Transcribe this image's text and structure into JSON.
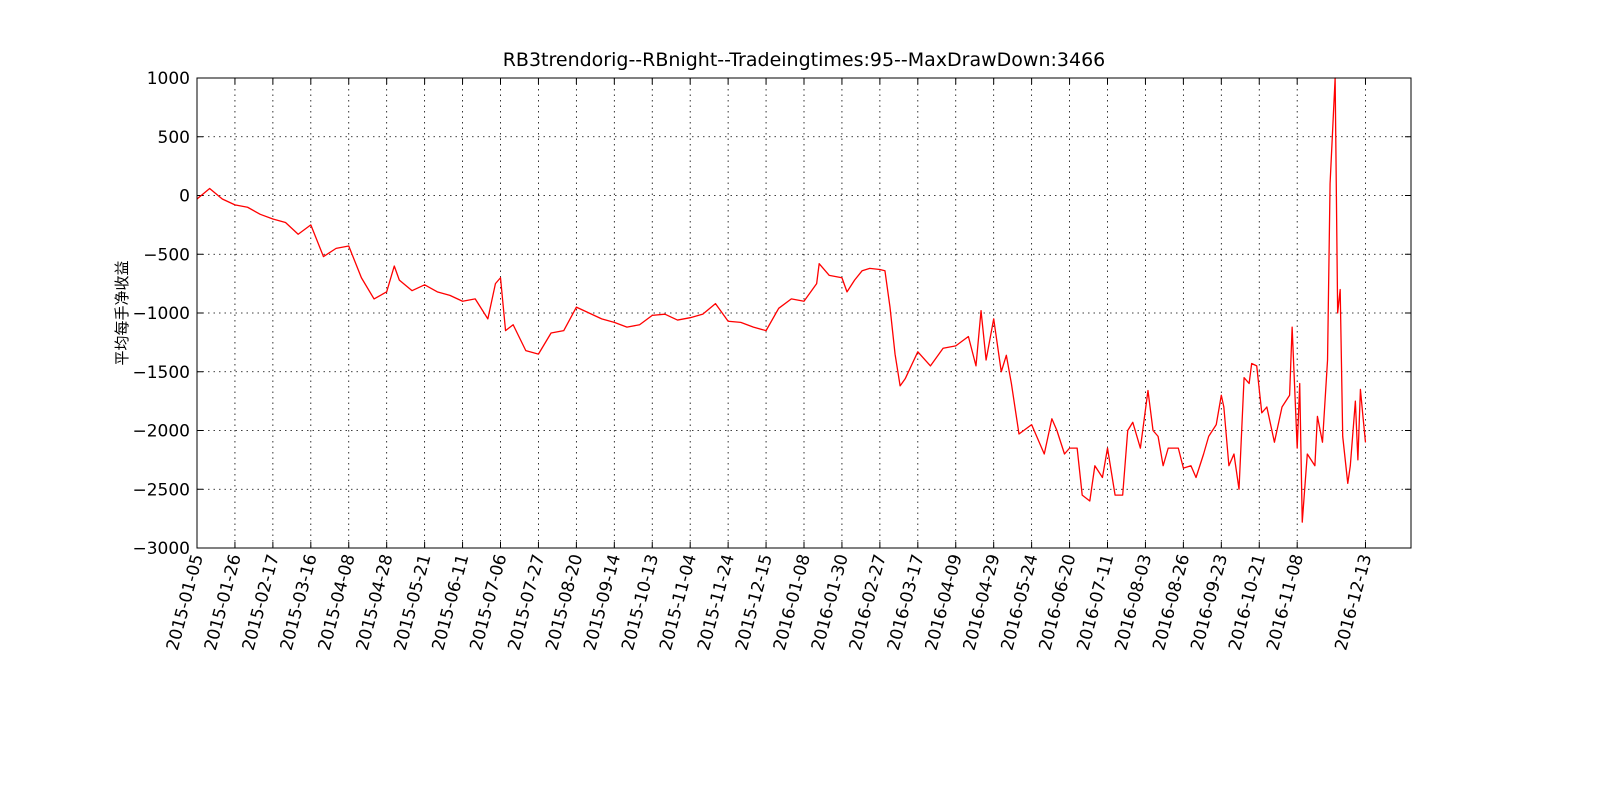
{
  "chart_data": {
    "type": "line",
    "title": "RB3trendorig--RBnight--Tradeingtimes:95--MaxDrawDown:3466",
    "y_label": "平均每手净收益",
    "grid": true,
    "xlim": [
      0,
      480
    ],
    "ylim": [
      -3000,
      1000
    ],
    "yticks": [
      {
        "value": -3000,
        "label": "−3000"
      },
      {
        "value": -2500,
        "label": "−2500"
      },
      {
        "value": -2000,
        "label": "−2000"
      },
      {
        "value": -1500,
        "label": "−1500"
      },
      {
        "value": -1000,
        "label": "−1000"
      },
      {
        "value": -500,
        "label": "−500"
      },
      0,
      500,
      1000
    ],
    "xticks": [
      {
        "value": 0,
        "label": "2015-01-05"
      },
      {
        "value": 15,
        "label": "2015-01-26"
      },
      {
        "value": 30,
        "label": "2015-02-17"
      },
      {
        "value": 45,
        "label": "2015-03-16"
      },
      {
        "value": 60,
        "label": "2015-04-08"
      },
      {
        "value": 75,
        "label": "2015-04-28"
      },
      {
        "value": 90,
        "label": "2015-05-21"
      },
      {
        "value": 105,
        "label": "2015-06-11"
      },
      {
        "value": 120,
        "label": "2015-07-06"
      },
      {
        "value": 135,
        "label": "2015-07-27"
      },
      {
        "value": 150,
        "label": "2015-08-20"
      },
      {
        "value": 165,
        "label": "2015-09-14"
      },
      {
        "value": 180,
        "label": "2015-10-13"
      },
      {
        "value": 195,
        "label": "2015-11-04"
      },
      {
        "value": 210,
        "label": "2015-11-24"
      },
      {
        "value": 225,
        "label": "2015-12-15"
      },
      {
        "value": 240,
        "label": "2016-01-08"
      },
      {
        "value": 255,
        "label": "2016-01-30"
      },
      {
        "value": 270,
        "label": "2016-02-27"
      },
      {
        "value": 285,
        "label": "2016-03-17"
      },
      {
        "value": 300,
        "label": "2016-04-09"
      },
      {
        "value": 315,
        "label": "2016-04-29"
      },
      {
        "value": 330,
        "label": "2016-05-24"
      },
      {
        "value": 345,
        "label": "2016-06-20"
      },
      {
        "value": 360,
        "label": "2016-07-11"
      },
      {
        "value": 375,
        "label": "2016-08-03"
      },
      {
        "value": 390,
        "label": "2016-08-26"
      },
      {
        "value": 405,
        "label": "2016-09-23"
      },
      {
        "value": 420,
        "label": "2016-10-21"
      },
      {
        "value": 435,
        "label": "2016-11-08"
      },
      {
        "value": 462,
        "label": "2016-12-13"
      }
    ],
    "x": [
      0,
      5,
      10,
      15,
      20,
      25,
      30,
      35,
      40,
      45,
      50,
      55,
      60,
      65,
      70,
      75,
      78,
      80,
      85,
      90,
      95,
      100,
      105,
      110,
      115,
      118,
      120,
      122,
      125,
      130,
      135,
      140,
      145,
      150,
      155,
      160,
      165,
      170,
      175,
      180,
      185,
      190,
      195,
      200,
      205,
      210,
      215,
      220,
      225,
      230,
      235,
      240,
      245,
      246,
      250,
      255,
      257,
      260,
      263,
      266,
      270,
      272,
      274,
      276,
      278,
      280,
      285,
      290,
      295,
      300,
      305,
      308,
      310,
      312,
      315,
      318,
      320,
      322,
      325,
      330,
      335,
      338,
      340,
      343,
      345,
      348,
      350,
      353,
      355,
      358,
      360,
      363,
      366,
      368,
      370,
      373,
      376,
      378,
      380,
      382,
      384,
      388,
      390,
      393,
      395,
      398,
      400,
      403,
      405,
      406,
      408,
      410,
      412,
      414,
      416,
      417,
      419,
      421,
      423,
      426,
      429,
      432,
      433,
      435,
      436,
      437,
      439,
      442,
      443,
      445,
      447,
      448,
      450,
      451,
      452,
      453,
      455,
      456,
      458,
      459,
      460,
      461,
      462
    ],
    "series": [
      {
        "color": "#ff0000",
        "values": [
          -30,
          60,
          -30,
          -80,
          -100,
          -160,
          -200,
          -230,
          -330,
          -250,
          -520,
          -450,
          -430,
          -700,
          -880,
          -820,
          -600,
          -720,
          -810,
          -760,
          -820,
          -850,
          -900,
          -880,
          -1050,
          -750,
          -700,
          -1150,
          -1100,
          -1320,
          -1350,
          -1170,
          -1150,
          -950,
          -1000,
          -1050,
          -1080,
          -1120,
          -1100,
          -1020,
          -1010,
          -1060,
          -1040,
          -1010,
          -920,
          -1070,
          -1080,
          -1120,
          -1150,
          -960,
          -880,
          -900,
          -750,
          -580,
          -680,
          -700,
          -820,
          -720,
          -640,
          -620,
          -630,
          -640,
          -950,
          -1350,
          -1620,
          -1560,
          -1330,
          -1450,
          -1300,
          -1280,
          -1200,
          -1450,
          -980,
          -1400,
          -1050,
          -1500,
          -1360,
          -1600,
          -2030,
          -1950,
          -2200,
          -1900,
          -2000,
          -2200,
          -2150,
          -2150,
          -2550,
          -2600,
          -2300,
          -2400,
          -2150,
          -2550,
          -2550,
          -2000,
          -1930,
          -2150,
          -1660,
          -2000,
          -2050,
          -2300,
          -2150,
          -2150,
          -2320,
          -2300,
          -2400,
          -2200,
          -2050,
          -1950,
          -1700,
          -1800,
          -2300,
          -2200,
          -2500,
          -1550,
          -1600,
          -1430,
          -1450,
          -1850,
          -1800,
          -2100,
          -1800,
          -1700,
          -1120,
          -2150,
          -1600,
          -2780,
          -2200,
          -2300,
          -1880,
          -2100,
          -1400,
          100,
          1000,
          -1000,
          -800,
          -2050,
          -2450,
          -2300,
          -1750,
          -2250,
          -1650,
          -1880,
          -2100
        ]
      }
    ]
  }
}
